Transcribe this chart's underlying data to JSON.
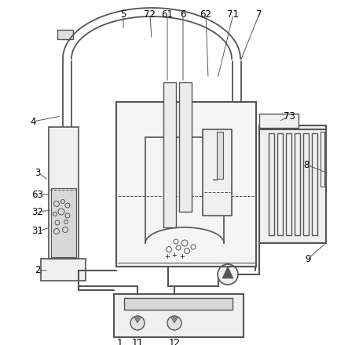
{
  "bg_color": "#ffffff",
  "lc": "#555555",
  "lc_thin": "#777777",
  "figsize": [
    4.43,
    4.4
  ],
  "dpi": 100,
  "label_color": "#000000"
}
